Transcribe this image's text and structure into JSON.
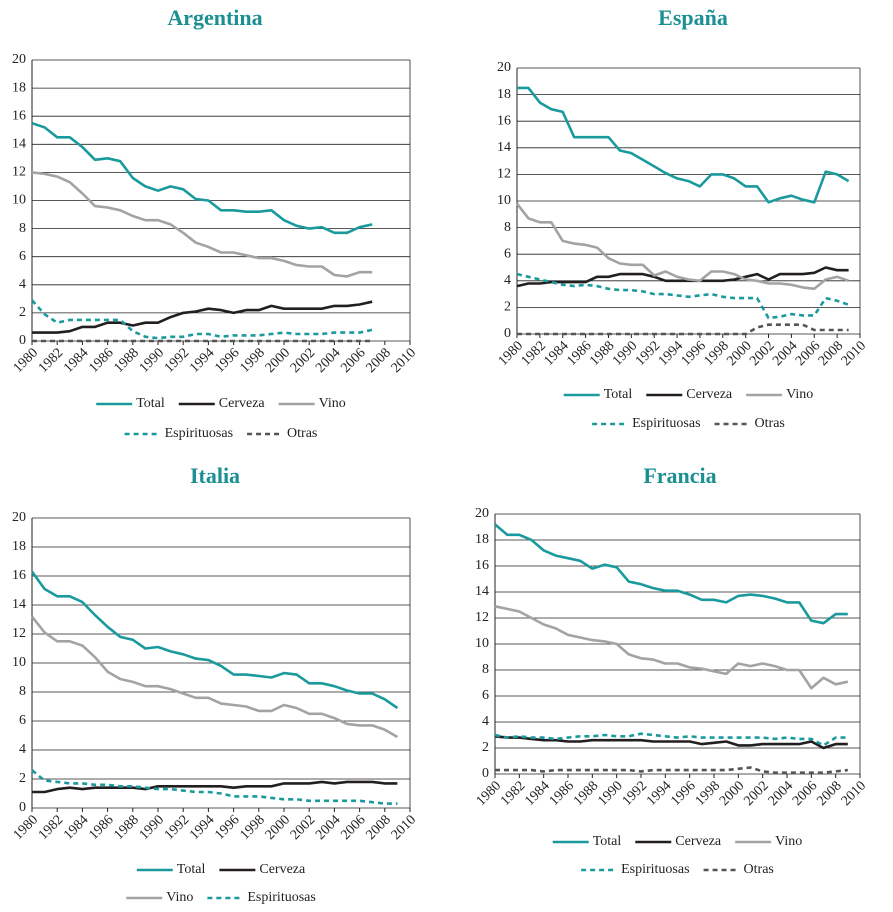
{
  "chart_data": [
    {
      "type": "line",
      "title": "Argentina",
      "x": [
        1980,
        1981,
        1982,
        1983,
        1984,
        1985,
        1986,
        1987,
        1988,
        1989,
        1990,
        1991,
        1992,
        1993,
        1994,
        1995,
        1996,
        1997,
        1998,
        1999,
        2000,
        2001,
        2002,
        2003,
        2004,
        2005,
        2006,
        2007
      ],
      "series": [
        {
          "name": "Total",
          "color": "#1b9a9e",
          "dashed": false,
          "values": [
            15.5,
            15.2,
            14.5,
            14.5,
            13.8,
            12.9,
            13.0,
            12.8,
            11.6,
            11.0,
            10.7,
            11.0,
            10.8,
            10.1,
            10.0,
            9.3,
            9.3,
            9.2,
            9.2,
            9.3,
            8.6,
            8.2,
            8.0,
            8.1,
            7.7,
            7.7,
            8.1,
            8.3
          ]
        },
        {
          "name": "Cerveza",
          "color": "#231f20",
          "dashed": false,
          "values": [
            0.6,
            0.6,
            0.6,
            0.7,
            1.0,
            1.0,
            1.3,
            1.3,
            1.1,
            1.3,
            1.3,
            1.7,
            2.0,
            2.1,
            2.3,
            2.2,
            2.0,
            2.2,
            2.2,
            2.5,
            2.3,
            2.3,
            2.3,
            2.3,
            2.5,
            2.5,
            2.6,
            2.8
          ]
        },
        {
          "name": "Vino",
          "color": "#a3a3a3",
          "dashed": false,
          "values": [
            12.0,
            11.9,
            11.7,
            11.3,
            10.5,
            9.6,
            9.5,
            9.3,
            8.9,
            8.6,
            8.6,
            8.3,
            7.7,
            7.0,
            6.7,
            6.3,
            6.3,
            6.1,
            5.9,
            5.9,
            5.7,
            5.4,
            5.3,
            5.3,
            4.7,
            4.6,
            4.9,
            4.9
          ]
        },
        {
          "name": "Espirituosas",
          "color": "#1b9a9e",
          "dashed": true,
          "values": [
            2.9,
            1.9,
            1.3,
            1.5,
            1.5,
            1.5,
            1.5,
            1.5,
            0.7,
            0.3,
            0.2,
            0.3,
            0.3,
            0.5,
            0.5,
            0.3,
            0.4,
            0.4,
            0.4,
            0.5,
            0.6,
            0.5,
            0.5,
            0.5,
            0.6,
            0.6,
            0.6,
            0.8
          ]
        },
        {
          "name": "Otras",
          "color": "#555555",
          "dashed": true,
          "values": [
            0,
            0,
            0,
            0,
            0,
            0,
            0,
            0,
            0,
            0,
            0,
            0,
            0,
            0,
            0,
            0,
            0,
            0,
            0,
            0,
            0,
            0,
            0,
            0,
            0,
            0,
            0,
            0
          ]
        }
      ],
      "xlim": [
        1980,
        2010
      ],
      "xticks": [
        1980,
        1982,
        1984,
        1986,
        1988,
        1990,
        1992,
        1994,
        1996,
        1998,
        2000,
        2002,
        2004,
        2006,
        2008,
        2010
      ],
      "ylim": [
        0,
        20
      ],
      "yticks": [
        0,
        2,
        4,
        6,
        8,
        10,
        12,
        14,
        16,
        18,
        20
      ],
      "grid": true
    },
    {
      "type": "line",
      "title": "España",
      "x": [
        1980,
        1981,
        1982,
        1983,
        1984,
        1985,
        1986,
        1987,
        1988,
        1989,
        1990,
        1991,
        1992,
        1993,
        1994,
        1995,
        1996,
        1997,
        1998,
        1999,
        2000,
        2001,
        2002,
        2003,
        2004,
        2005,
        2006,
        2007,
        2008,
        2009
      ],
      "series": [
        {
          "name": "Total",
          "color": "#1b9a9e",
          "dashed": false,
          "values": [
            18.5,
            18.5,
            17.4,
            16.9,
            16.7,
            14.8,
            14.8,
            14.8,
            14.8,
            13.8,
            13.6,
            13.1,
            12.6,
            12.1,
            11.7,
            11.5,
            11.1,
            12.0,
            12.0,
            11.7,
            11.1,
            11.1,
            9.9,
            10.2,
            10.4,
            10.1,
            9.9,
            12.2,
            12.0,
            11.5
          ]
        },
        {
          "name": "Cerveza",
          "color": "#231f20",
          "dashed": false,
          "values": [
            3.6,
            3.8,
            3.8,
            3.9,
            3.9,
            3.9,
            3.9,
            4.3,
            4.3,
            4.5,
            4.5,
            4.5,
            4.3,
            4.0,
            4.0,
            4.0,
            4.0,
            4.0,
            4.0,
            4.1,
            4.3,
            4.5,
            4.1,
            4.5,
            4.5,
            4.5,
            4.6,
            5.0,
            4.8,
            4.8
          ]
        },
        {
          "name": "Vino",
          "color": "#a3a3a3",
          "dashed": false,
          "values": [
            9.8,
            8.7,
            8.4,
            8.4,
            7.0,
            6.8,
            6.7,
            6.5,
            5.7,
            5.3,
            5.2,
            5.2,
            4.4,
            4.7,
            4.3,
            4.1,
            4.0,
            4.7,
            4.7,
            4.5,
            4.1,
            4.0,
            3.8,
            3.8,
            3.7,
            3.5,
            3.4,
            4.1,
            4.3,
            4.0
          ]
        },
        {
          "name": "Espirituosas",
          "color": "#1b9a9e",
          "dashed": true,
          "values": [
            4.5,
            4.3,
            4.1,
            3.9,
            3.7,
            3.6,
            3.7,
            3.6,
            3.4,
            3.3,
            3.3,
            3.2,
            3.0,
            3.0,
            2.9,
            2.8,
            2.9,
            3.0,
            2.8,
            2.7,
            2.7,
            2.7,
            1.2,
            1.3,
            1.5,
            1.4,
            1.4,
            2.7,
            2.5,
            2.2
          ]
        },
        {
          "name": "Otras",
          "color": "#555555",
          "dashed": true,
          "values": [
            0,
            0,
            0,
            0,
            0,
            0,
            0,
            0,
            0,
            0,
            0,
            0,
            0,
            0,
            0,
            0,
            0,
            0,
            0,
            0,
            0,
            0.5,
            0.7,
            0.7,
            0.7,
            0.7,
            0.3,
            0.3,
            0.3,
            0.3
          ]
        }
      ],
      "xlim": [
        1980,
        2010
      ],
      "xticks": [
        1980,
        1982,
        1984,
        1986,
        1988,
        1990,
        1992,
        1994,
        1996,
        1998,
        2000,
        2002,
        2004,
        2006,
        2008,
        2010
      ],
      "ylim": [
        0,
        20
      ],
      "yticks": [
        0,
        2,
        4,
        6,
        8,
        10,
        12,
        14,
        16,
        18,
        20
      ],
      "grid": true
    },
    {
      "type": "line",
      "title": "Italia",
      "x": [
        1980,
        1981,
        1982,
        1983,
        1984,
        1985,
        1986,
        1987,
        1988,
        1989,
        1990,
        1991,
        1992,
        1993,
        1994,
        1995,
        1996,
        1997,
        1998,
        1999,
        2000,
        2001,
        2002,
        2003,
        2004,
        2005,
        2006,
        2007,
        2008,
        2009
      ],
      "series": [
        {
          "name": "Total",
          "color": "#1b9a9e",
          "dashed": false,
          "values": [
            16.3,
            15.1,
            14.6,
            14.6,
            14.2,
            13.3,
            12.5,
            11.8,
            11.6,
            11.0,
            11.1,
            10.8,
            10.6,
            10.3,
            10.2,
            9.8,
            9.2,
            9.2,
            9.1,
            9.0,
            9.3,
            9.2,
            8.6,
            8.6,
            8.4,
            8.1,
            7.9,
            7.9,
            7.5,
            6.9
          ]
        },
        {
          "name": "Cerveza",
          "color": "#231f20",
          "dashed": false,
          "values": [
            1.1,
            1.1,
            1.3,
            1.4,
            1.3,
            1.4,
            1.4,
            1.4,
            1.4,
            1.3,
            1.5,
            1.5,
            1.5,
            1.5,
            1.5,
            1.5,
            1.4,
            1.5,
            1.5,
            1.5,
            1.7,
            1.7,
            1.7,
            1.8,
            1.7,
            1.8,
            1.8,
            1.8,
            1.7,
            1.7
          ]
        },
        {
          "name": "Vino",
          "color": "#a3a3a3",
          "dashed": false,
          "values": [
            13.2,
            12.1,
            11.5,
            11.5,
            11.2,
            10.4,
            9.4,
            8.9,
            8.7,
            8.4,
            8.4,
            8.2,
            7.9,
            7.6,
            7.6,
            7.2,
            7.1,
            7.0,
            6.7,
            6.7,
            7.1,
            6.9,
            6.5,
            6.5,
            6.2,
            5.8,
            5.7,
            5.7,
            5.4,
            4.9
          ]
        },
        {
          "name": "Espirituosas",
          "color": "#1b9a9e",
          "dashed": true,
          "values": [
            2.6,
            1.9,
            1.8,
            1.7,
            1.7,
            1.6,
            1.6,
            1.5,
            1.5,
            1.4,
            1.3,
            1.3,
            1.2,
            1.1,
            1.1,
            1.0,
            0.8,
            0.8,
            0.8,
            0.7,
            0.6,
            0.6,
            0.5,
            0.5,
            0.5,
            0.5,
            0.5,
            0.4,
            0.3,
            0.3
          ]
        }
      ],
      "xlim": [
        1980,
        2010
      ],
      "xticks": [
        1980,
        1982,
        1984,
        1986,
        1988,
        1990,
        1992,
        1994,
        1996,
        1998,
        2000,
        2002,
        2004,
        2006,
        2008,
        2010
      ],
      "ylim": [
        0,
        20
      ],
      "yticks": [
        0,
        2,
        4,
        6,
        8,
        10,
        12,
        14,
        16,
        18,
        20
      ],
      "grid": true
    },
    {
      "type": "line",
      "title": "Francia",
      "x": [
        1980,
        1981,
        1982,
        1983,
        1984,
        1985,
        1986,
        1987,
        1988,
        1989,
        1990,
        1991,
        1992,
        1993,
        1994,
        1995,
        1996,
        1997,
        1998,
        1999,
        2000,
        2001,
        2002,
        2003,
        2004,
        2005,
        2006,
        2007,
        2008,
        2009
      ],
      "series": [
        {
          "name": "Total",
          "color": "#1b9a9e",
          "dashed": false,
          "values": [
            19.2,
            18.4,
            18.4,
            18.0,
            17.2,
            16.8,
            16.6,
            16.4,
            15.8,
            16.1,
            15.9,
            14.8,
            14.6,
            14.3,
            14.1,
            14.1,
            13.8,
            13.4,
            13.4,
            13.2,
            13.7,
            13.8,
            13.7,
            13.5,
            13.2,
            13.2,
            11.8,
            11.6,
            12.3,
            12.3
          ]
        },
        {
          "name": "Cerveza",
          "color": "#231f20",
          "dashed": false,
          "values": [
            2.9,
            2.8,
            2.8,
            2.7,
            2.6,
            2.6,
            2.5,
            2.5,
            2.6,
            2.6,
            2.6,
            2.6,
            2.6,
            2.5,
            2.5,
            2.5,
            2.5,
            2.3,
            2.4,
            2.5,
            2.2,
            2.2,
            2.3,
            2.3,
            2.3,
            2.3,
            2.5,
            2.0,
            2.3,
            2.3
          ]
        },
        {
          "name": "Vino",
          "color": "#a3a3a3",
          "dashed": false,
          "values": [
            12.9,
            12.7,
            12.5,
            12.0,
            11.5,
            11.2,
            10.7,
            10.5,
            10.3,
            10.2,
            10.0,
            9.2,
            8.9,
            8.8,
            8.5,
            8.5,
            8.2,
            8.1,
            7.9,
            7.7,
            8.5,
            8.3,
            8.5,
            8.3,
            8.0,
            8.0,
            6.6,
            7.4,
            6.9,
            7.1
          ]
        },
        {
          "name": "Espirituosas",
          "color": "#1b9a9e",
          "dashed": true,
          "values": [
            3.0,
            2.8,
            2.9,
            2.8,
            2.8,
            2.7,
            2.8,
            2.9,
            2.9,
            3.0,
            2.9,
            2.9,
            3.1,
            3.0,
            2.9,
            2.8,
            2.9,
            2.8,
            2.8,
            2.8,
            2.8,
            2.8,
            2.8,
            2.7,
            2.8,
            2.7,
            2.7,
            2.2,
            2.8,
            2.8
          ]
        },
        {
          "name": "Otras",
          "color": "#555555",
          "dashed": true,
          "values": [
            0.3,
            0.3,
            0.3,
            0.3,
            0.2,
            0.3,
            0.3,
            0.3,
            0.3,
            0.3,
            0.3,
            0.3,
            0.2,
            0.3,
            0.3,
            0.3,
            0.3,
            0.3,
            0.3,
            0.3,
            0.4,
            0.5,
            0.2,
            0.1,
            0.1,
            0.1,
            0.1,
            0.1,
            0.2,
            0.3
          ]
        }
      ],
      "xlim": [
        1980,
        2010
      ],
      "xticks": [
        1980,
        1982,
        1984,
        1986,
        1988,
        1990,
        1992,
        1994,
        1996,
        1998,
        2000,
        2002,
        2004,
        2006,
        2008,
        2010
      ],
      "ylim": [
        0,
        20
      ],
      "yticks": [
        0,
        2,
        4,
        6,
        8,
        10,
        12,
        14,
        16,
        18,
        20
      ],
      "grid": true
    }
  ]
}
